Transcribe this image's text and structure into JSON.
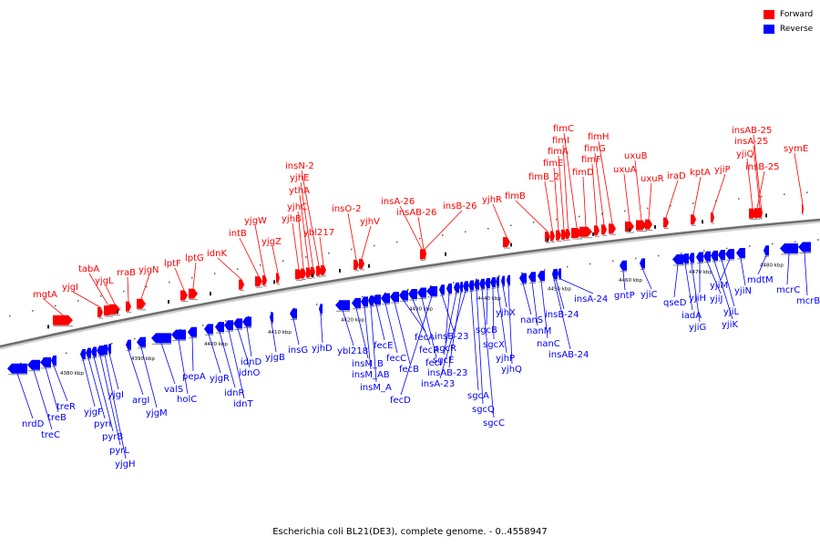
{
  "legend": [
    {
      "label": "Forward",
      "color": "#ff0000"
    },
    {
      "label": "Reverse",
      "color": "#0000ff"
    }
  ],
  "caption": "Escherichia coli BL21(DE3), complete genome. - 0..4558947",
  "colors": {
    "forward": "#ff0000",
    "reverse": "#0000ff",
    "backbone": "#6e6e6e"
  },
  "ticks": [
    "4380 kbp",
    "4390 kbp",
    "4400 kbp",
    "4410 kbp",
    "4420 kbp",
    "4430 kbp",
    "4440 kbp",
    "4450 kbp",
    "4460 kbp",
    "4470 kbp",
    "4480 kbp"
  ],
  "forward_labels": [
    "mgtA",
    "yjgI",
    "tabA",
    "yjgL",
    "rraB",
    "yjgN",
    "lptF",
    "lptG",
    "idnK",
    "intB",
    "yjgW",
    "yjgZ",
    "yjhB",
    "yjhC",
    "ythA",
    "yjhE",
    "insN-2",
    "ybl217",
    "insO-2",
    "yjhV",
    "insA-26",
    "insAB-26",
    "insB-26",
    "yjhR",
    "fimB",
    "fimB_2",
    "fimE",
    "fimA",
    "fimI",
    "fimC",
    "fimD",
    "fimF",
    "fimG",
    "fimH",
    "uxuA",
    "uxuB",
    "uxuR",
    "iraD",
    "kptA",
    "yjiP",
    "yjiQ",
    "insB-25",
    "insA-25",
    "insAB-25",
    "symE"
  ],
  "reverse_labels": [
    "nrdD",
    "treC",
    "treB",
    "treR",
    "yjgF",
    "pyrI",
    "pyrB",
    "pyrL",
    "yjgH",
    "yjgI",
    "argI",
    "yjgM",
    "valS",
    "holC",
    "pepA",
    "yjgR",
    "idnR",
    "idnT",
    "idnO",
    "idnD",
    "yjgB",
    "insG",
    "yjhD",
    "ybl218",
    "insM_B",
    "insM_AB",
    "insM_A",
    "fecE",
    "fecC",
    "fecB",
    "fecA",
    "fecR",
    "fecI",
    "fecD",
    "insB-23",
    "sgcR",
    "sgcE",
    "insAB-23",
    "insA-23",
    "sgcA",
    "sgcQ",
    "sgcC",
    "sgcB",
    "sgcX",
    "yjhP",
    "yjhX",
    "yjhQ",
    "nanS",
    "nanM",
    "nanC",
    "insAB-24",
    "insB-24",
    "insA-24",
    "gntP",
    "yjiC",
    "qseD",
    "iadA",
    "yjiG",
    "yjiH",
    "yjiJ",
    "yjiK",
    "yjiL",
    "yjiM",
    "yjiN",
    "mdtM",
    "mcrC",
    "mcrB"
  ]
}
